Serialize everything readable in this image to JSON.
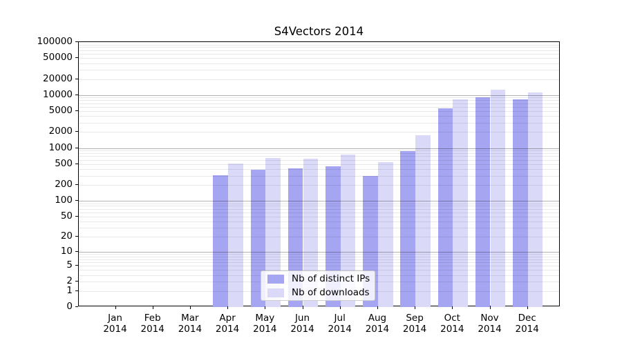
{
  "figure": {
    "title": "S4Vectors 2014"
  },
  "chart_data": {
    "type": "bar",
    "title": "S4Vectors 2014",
    "yscale": "log(value+1)",
    "ylim": [
      0,
      100000
    ],
    "grid": true,
    "y_ticks": [
      100000,
      50000,
      20000,
      10000,
      5000,
      2000,
      1000,
      500,
      200,
      100,
      50,
      20,
      10,
      5,
      2,
      1,
      0
    ],
    "categories": [
      "Jan 2014",
      "Feb 2014",
      "Mar 2014",
      "Apr 2014",
      "May 2014",
      "Jun 2014",
      "Jul 2014",
      "Aug 2014",
      "Sep 2014",
      "Oct 2014",
      "Nov 2014",
      "Dec 2014"
    ],
    "series": [
      {
        "name": "Nb of distinct IPs",
        "key": "ips",
        "color": "#a5a5f2",
        "values": [
          0,
          0,
          0,
          305,
          390,
          415,
          450,
          300,
          880,
          5700,
          9000,
          8200
        ]
      },
      {
        "name": "Nb of downloads",
        "key": "downloads",
        "color": "#dadaf8",
        "values": [
          0,
          0,
          0,
          510,
          650,
          620,
          760,
          545,
          1750,
          8200,
          12500,
          11200
        ]
      }
    ],
    "legend": {
      "position": "inside-bottom-center",
      "items": [
        "Nb of distinct IPs",
        "Nb of downloads"
      ]
    }
  },
  "colors": {
    "ips_bar": "#a5a5f2",
    "downloads_bar": "#dadaf8",
    "grid_major": "rgba(0,0,0,0.30)",
    "grid_minor": "rgba(0,0,0,0.085)",
    "axis": "#000000",
    "legend_border": "#cccccc",
    "background": "#ffffff"
  }
}
